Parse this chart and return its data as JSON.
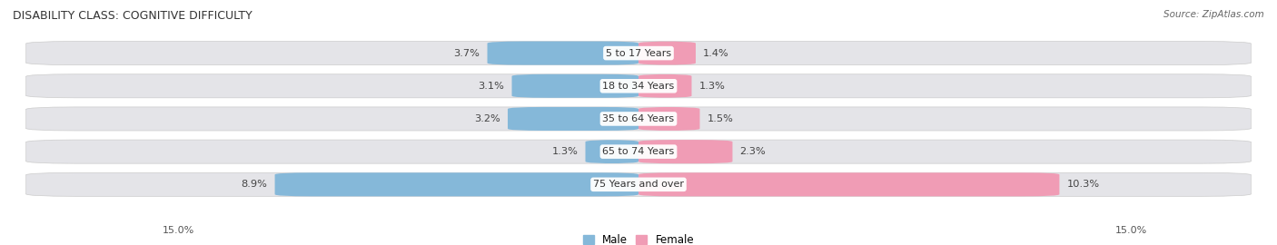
{
  "title": "DISABILITY CLASS: COGNITIVE DIFFICULTY",
  "source": "Source: ZipAtlas.com",
  "categories": [
    "5 to 17 Years",
    "18 to 34 Years",
    "35 to 64 Years",
    "65 to 74 Years",
    "75 Years and over"
  ],
  "male_values": [
    3.7,
    3.1,
    3.2,
    1.3,
    8.9
  ],
  "female_values": [
    1.4,
    1.3,
    1.5,
    2.3,
    10.3
  ],
  "male_color": "#85b8d9",
  "female_color": "#f09cb5",
  "row_bg_color": "#e4e4e8",
  "row_border_color": "#cccccc",
  "max_val": 15.0,
  "axis_label_left": "15.0%",
  "axis_label_right": "15.0%",
  "center_text_color": "#333333",
  "value_text_color": "#444444",
  "background_color": "#ffffff",
  "title_color": "#333333",
  "source_color": "#666666"
}
